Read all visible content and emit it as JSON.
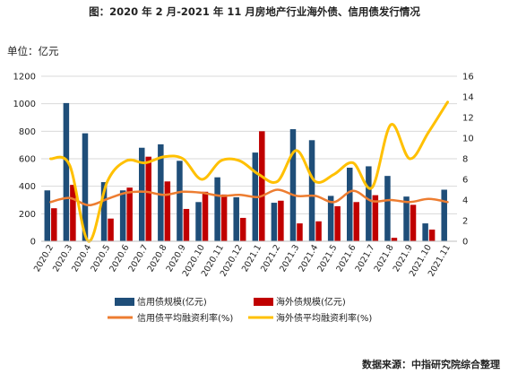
{
  "title": "图：2020 年 2 月-2021 年 11 月房地产行业海外债、信用债发行情况",
  "unit_label": "单位：亿元",
  "source": "数据来源：中指研究院综合整理",
  "colors": {
    "credit_bar": "#1f4e79",
    "overseas_bar": "#c00000",
    "credit_rate_line": "#ed7d31",
    "overseas_rate_line": "#ffc000",
    "gridline": "#d9d9d9"
  },
  "chart_data": {
    "type": "bar",
    "categories": [
      "2020.2",
      "2020.3",
      "2020.4",
      "2020.5",
      "2020.6",
      "2020.7",
      "2020.8",
      "2020.9",
      "2020.10",
      "2020.11",
      "2020.12",
      "2021.1",
      "2021.2",
      "2021.3",
      "2021.4",
      "2021.5",
      "2021.6",
      "2021.7",
      "2021.8",
      "2021.9",
      "2021.10",
      "2021.11"
    ],
    "series": [
      {
        "name": "信用债规模(亿元)",
        "axis": "left",
        "kind": "bar",
        "values": [
          370,
          1005,
          785,
          430,
          370,
          680,
          705,
          585,
          285,
          465,
          320,
          645,
          280,
          815,
          735,
          330,
          535,
          545,
          475,
          325,
          130,
          375
        ]
      },
      {
        "name": "海外债规模(亿元)",
        "axis": "left",
        "kind": "bar",
        "values": [
          240,
          410,
          0,
          165,
          390,
          615,
          435,
          235,
          360,
          340,
          170,
          800,
          295,
          130,
          145,
          255,
          285,
          335,
          25,
          265,
          85,
          0
        ]
      },
      {
        "name": "信用债平均融资利率(%)",
        "axis": "right",
        "kind": "line",
        "values": [
          3.8,
          4.2,
          3.5,
          4.1,
          4.7,
          4.8,
          4.5,
          4.8,
          4.7,
          4.4,
          4.5,
          4.3,
          5.0,
          4.4,
          4.4,
          3.8,
          4.9,
          3.9,
          4.0,
          3.8,
          4.1,
          3.8
        ]
      },
      {
        "name": "海外债平均融资利率(%)",
        "axis": "right",
        "kind": "line",
        "values": [
          8.0,
          7.4,
          0.0,
          5.8,
          7.8,
          7.6,
          8.2,
          8.0,
          6.0,
          7.8,
          7.8,
          6.5,
          5.8,
          8.8,
          5.8,
          6.5,
          7.6,
          5.2,
          11.3,
          8.0,
          10.6,
          13.5
        ]
      }
    ],
    "y_left": {
      "min": 0,
      "max": 1200,
      "ticks": [
        0,
        200,
        400,
        600,
        800,
        1000,
        1200
      ]
    },
    "y_right": {
      "min": 0,
      "max": 16,
      "ticks": [
        0,
        2,
        4,
        6,
        8,
        10,
        12,
        14,
        16
      ]
    },
    "grid": true,
    "legend_position": "bottom"
  }
}
